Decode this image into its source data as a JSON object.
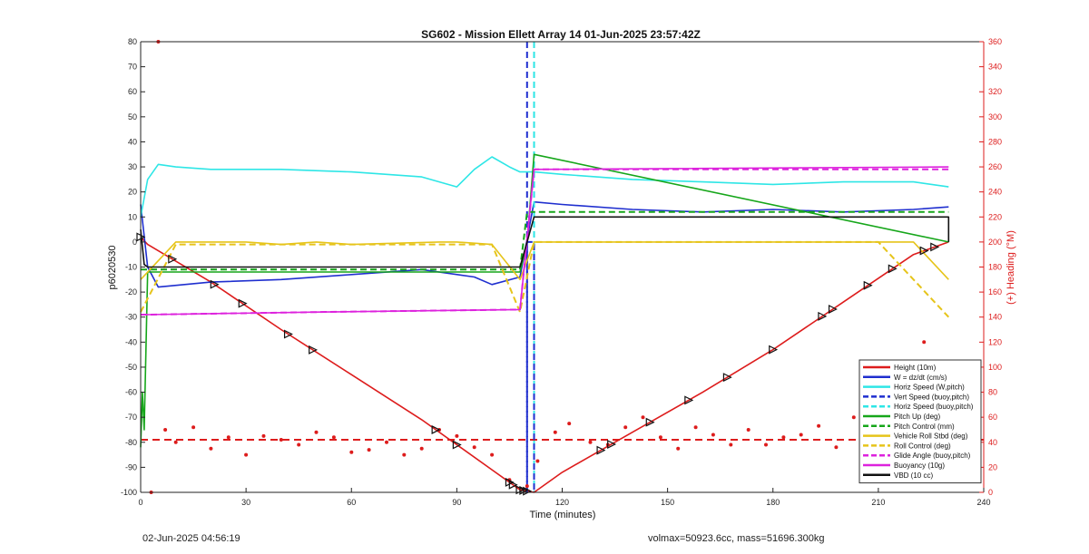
{
  "chart_data": {
    "type": "line",
    "title": "SG602 - Mission Ellett Array 14 01-Jun-2025 23:57:42Z",
    "xlabel": "Time (minutes)",
    "ylabel": "p6020530",
    "y2label": "(+) Heading (°M)",
    "xlim": [
      0,
      240
    ],
    "ylim": [
      -100,
      80
    ],
    "y2lim": [
      0,
      360
    ],
    "xticks": [
      0,
      30,
      60,
      90,
      120,
      150,
      180,
      210,
      240
    ],
    "yticks": [
      -100,
      -90,
      -80,
      -70,
      -60,
      -50,
      -40,
      -30,
      -20,
      -10,
      0,
      10,
      20,
      30,
      40,
      50,
      60,
      70,
      80
    ],
    "y2ticks": [
      0,
      20,
      40,
      60,
      80,
      100,
      120,
      140,
      160,
      180,
      200,
      220,
      240,
      260,
      280,
      300,
      320,
      340,
      360
    ],
    "legend_position": "bottom-right",
    "colors": {
      "red": "#dd1c1c",
      "blue": "#1f2fcf",
      "cyan": "#2ee6e6",
      "green": "#16a61a",
      "yellow": "#e6c41a",
      "magenta": "#dd22dd",
      "black": "#111111"
    },
    "series": [
      {
        "name": "Height (10m)",
        "style": "solid",
        "color": "#dd1c1c",
        "x": [
          0,
          2,
          20,
          40,
          60,
          80,
          100,
          108,
          112,
          120,
          140,
          160,
          180,
          200,
          220,
          230
        ],
        "y": [
          2,
          -1,
          -16,
          -35,
          -53,
          -71,
          -91,
          -99,
          -100,
          -92,
          -76,
          -60,
          -43,
          -24,
          -5,
          0
        ]
      },
      {
        "name": "W = dz/dt (cm/s)",
        "style": "solid",
        "color": "#1f2fcf",
        "x": [
          0,
          2,
          5,
          20,
          40,
          60,
          80,
          95,
          100,
          108,
          112,
          120,
          140,
          160,
          180,
          200,
          220,
          230
        ],
        "y": [
          15,
          -10,
          -18,
          -16,
          -15,
          -13,
          -11,
          -14,
          -17,
          -14,
          16,
          15,
          13,
          12,
          13,
          12,
          13,
          14
        ]
      },
      {
        "name": "Horiz Speed (W,pitch)",
        "style": "solid",
        "color": "#2ee6e6",
        "x": [
          0,
          2,
          5,
          10,
          20,
          40,
          60,
          80,
          90,
          95,
          100,
          105,
          108,
          112,
          120,
          140,
          160,
          180,
          200,
          220,
          230
        ],
        "y": [
          10,
          25,
          31,
          30,
          29,
          29,
          28,
          26,
          22,
          29,
          34,
          30,
          28,
          28,
          27,
          25,
          24,
          23,
          24,
          24,
          22
        ]
      },
      {
        "name": "Vert Speed (buoy,pitch)",
        "style": "dashed",
        "color": "#1f2fcf",
        "x": [
          110,
          110,
          112,
          112
        ],
        "y": [
          -100,
          0,
          0,
          -100
        ]
      },
      {
        "name": "Horiz Speed (buoy,pitch)",
        "style": "dashed",
        "color": "#2ee6e6",
        "x": [
          112,
          112
        ],
        "y": [
          80,
          0
        ]
      },
      {
        "name": "Pitch Up (deg)",
        "style": "solid",
        "color": "#16a61a",
        "x": [
          0,
          0.5,
          1,
          2,
          108,
          110,
          112,
          230
        ],
        "y": [
          -82,
          -60,
          -75,
          -12,
          -12,
          0,
          35,
          0
        ]
      },
      {
        "name": "Pitch Control (mm)",
        "style": "dashed",
        "color": "#16a61a",
        "x": [
          0,
          2,
          108,
          110,
          230
        ],
        "y": [
          -11,
          -11,
          -11,
          12,
          12
        ]
      },
      {
        "name": "Vehicle Roll Stbd (deg)",
        "style": "solid",
        "color": "#e6c41a",
        "x": [
          0,
          10,
          22,
          30,
          40,
          50,
          60,
          85,
          90,
          100,
          108,
          112,
          120,
          130,
          140,
          150,
          170,
          190,
          220,
          230
        ],
        "y": [
          -15,
          0,
          0,
          0,
          -1,
          0,
          -1,
          0,
          0,
          -1,
          -15,
          0,
          0,
          0,
          0,
          0,
          0,
          0,
          0,
          -15
        ]
      },
      {
        "name": "Roll Control (deg)",
        "style": "dashed",
        "color": "#e6c41a",
        "x": [
          0,
          10,
          22,
          30,
          40,
          50,
          60,
          80,
          90,
          100,
          108,
          112,
          130,
          150,
          170,
          190,
          210,
          230
        ],
        "y": [
          -28,
          -1,
          -1,
          -1,
          -1,
          -1,
          -1,
          -1,
          -1,
          -1,
          -28,
          0,
          0,
          0,
          0,
          0,
          0,
          -30
        ]
      },
      {
        "name": "Glide Angle (buoy,pitch)",
        "style": "dashed",
        "color": "#dd22dd",
        "x": [
          0,
          2,
          50,
          108,
          112,
          230
        ],
        "y": [
          -29,
          -29,
          -28,
          -27,
          29,
          29
        ]
      },
      {
        "name": "Buoyancy (10g)",
        "style": "solid",
        "color": "#dd22dd",
        "x": [
          0,
          2,
          50,
          108,
          112,
          230
        ],
        "y": [
          -29,
          -29,
          -28,
          -27,
          29,
          30
        ]
      },
      {
        "name": "VBD (10 cc)",
        "style": "solid",
        "color": "#111111",
        "x": [
          0,
          1,
          2,
          108,
          110,
          112,
          125,
          230,
          230
        ],
        "y": [
          5,
          -9,
          -10,
          -10,
          0,
          10,
          10,
          10,
          0
        ]
      }
    ],
    "heading_series": {
      "axis": "right",
      "color": "#dd1c1c",
      "style": "dotted",
      "mean_heading": 42,
      "x": [
        3,
        5,
        7,
        10,
        15,
        20,
        25,
        30,
        35,
        40,
        45,
        50,
        55,
        60,
        65,
        70,
        75,
        80,
        85,
        90,
        95,
        100,
        105,
        110,
        113,
        118,
        122,
        128,
        133,
        138,
        143,
        148,
        153,
        158,
        163,
        168,
        173,
        178,
        183,
        188,
        193,
        198,
        203,
        208,
        213,
        218,
        223,
        228
      ],
      "y": [
        0,
        360,
        50,
        40,
        52,
        35,
        44,
        30,
        45,
        42,
        38,
        48,
        44,
        32,
        34,
        40,
        30,
        35,
        50,
        45,
        36,
        30,
        10,
        5,
        25,
        48,
        55,
        40,
        38,
        52,
        60,
        44,
        35,
        52,
        46,
        38,
        50,
        38,
        44,
        46,
        53,
        36,
        60,
        32,
        40,
        30,
        120,
        80
      ]
    },
    "vertical_lines": [
      {
        "x": 110,
        "color": "#1f2fcf",
        "style": "dashed"
      },
      {
        "x": 112,
        "color": "#2ee6e6",
        "style": "dashed"
      }
    ],
    "horizontal_lines": [
      {
        "y": -79,
        "color": "#dd1c1c",
        "style": "dashed"
      }
    ],
    "height_markers": {
      "x": [
        0,
        9,
        21,
        29,
        42,
        49,
        84,
        90,
        105,
        106,
        108,
        109,
        110,
        131,
        134,
        145,
        156,
        167,
        180,
        194,
        197,
        207,
        214,
        223,
        226
      ]
    }
  },
  "footer": {
    "left": "02-Jun-2025 04:56:19",
    "right": "volmax=50923.6cc, mass=51696.300kg"
  }
}
